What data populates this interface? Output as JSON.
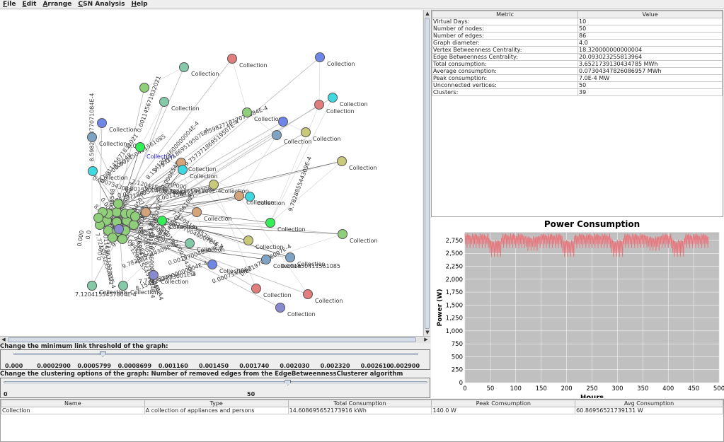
{
  "menu": [
    {
      "mnemonic": "F",
      "rest": "ile"
    },
    {
      "mnemonic": "E",
      "rest": "dit"
    },
    {
      "mnemonic": "A",
      "rest": "rrange"
    },
    {
      "mnemonic": "C",
      "rest": "SN Analysis"
    },
    {
      "mnemonic": "H",
      "rest": "elp"
    }
  ],
  "graph": {
    "node_label": "Collection",
    "selected_label": "Collection",
    "node_colors": {
      "green": "#8fcf7a",
      "teal": "#86c9a8",
      "red": "#e07d7d",
      "blue": "#6f86e6",
      "steel": "#7fa3c4",
      "cyan": "#3fd8e0",
      "olive": "#c9c97a",
      "tan": "#d4a57a",
      "lime": "#33ee55",
      "slate": "#8a8ad0"
    },
    "edge_labels": [
      "8.598271877071084E-4",
      "0.001145671832021",
      "9.757371869519507E-4",
      "9.782885544309E-4",
      "7.1204155457804E-4",
      "7.721593233001E-4",
      "8.15412024600000004E-4",
      "0.001450411561085",
      "0.001970046007E-4",
      "0.0007543067",
      "0.001",
      "0.0006548",
      "0.0",
      "0.000"
    ]
  },
  "metrics": {
    "headers": [
      "Metric",
      "Value"
    ],
    "rows": [
      [
        "Virtual Days:",
        "10"
      ],
      [
        "Number of nodes:",
        "50"
      ],
      [
        "Number of edges:",
        "86"
      ],
      [
        "Graph diameter:",
        "4.0"
      ],
      [
        "Vertex Betweenness Centrality:",
        "18.320000000000004"
      ],
      [
        "Edge Betweenness Centrality:",
        "20.093023255813964"
      ],
      [
        "Total consumption:",
        "3.6521739130434785 MWh"
      ],
      [
        "Average consumption:",
        "0.07304347826086957 MWh"
      ],
      [
        "Peak consumption:",
        "7.0E-4 MW"
      ],
      [
        "Unconnected vertices:",
        "50"
      ],
      [
        "Clusters:",
        "39"
      ]
    ]
  },
  "chart_data": {
    "type": "line",
    "title": "Power Consumption",
    "xlabel": "Hours",
    "ylabel": "Power (W)",
    "xlim": [
      0,
      500
    ],
    "ylim": [
      0,
      2900
    ],
    "xticks": [
      0,
      50,
      100,
      150,
      200,
      250,
      300,
      350,
      400,
      450,
      500
    ],
    "yticks": [
      0,
      250,
      500,
      750,
      1000,
      1250,
      1500,
      1750,
      2000,
      2250,
      2500,
      2750
    ],
    "ytick_labels": [
      "0",
      "250",
      "500",
      "750",
      "1,000",
      "1,250",
      "1,500",
      "1,750",
      "2,000",
      "2,250",
      "2,500",
      "2,750"
    ],
    "series": [
      {
        "color": "#e8747a",
        "segments": [
          {
            "x_start": 0,
            "x_end": 48,
            "low": 2550,
            "high": 2880
          },
          {
            "x_start": 48,
            "x_end": 72,
            "low": 2380,
            "high": 2760
          },
          {
            "x_start": 72,
            "x_end": 120,
            "low": 2550,
            "high": 2880
          },
          {
            "x_start": 120,
            "x_end": 144,
            "low": 2500,
            "high": 2830
          },
          {
            "x_start": 144,
            "x_end": 192,
            "low": 2550,
            "high": 2880
          },
          {
            "x_start": 192,
            "x_end": 216,
            "low": 2380,
            "high": 2760
          },
          {
            "x_start": 216,
            "x_end": 288,
            "low": 2550,
            "high": 2880
          },
          {
            "x_start": 288,
            "x_end": 312,
            "low": 2380,
            "high": 2760
          },
          {
            "x_start": 312,
            "x_end": 360,
            "low": 2550,
            "high": 2880
          },
          {
            "x_start": 360,
            "x_end": 384,
            "low": 2500,
            "high": 2830
          },
          {
            "x_start": 384,
            "x_end": 408,
            "low": 2550,
            "high": 2880
          },
          {
            "x_start": 408,
            "x_end": 432,
            "low": 2380,
            "high": 2760
          },
          {
            "x_start": 432,
            "x_end": 480,
            "low": 2550,
            "high": 2880
          }
        ]
      }
    ],
    "grid": true,
    "background": "#c0c0c0"
  },
  "threshold": {
    "title": "Change the minimum link threshold of the graph:",
    "ticks": [
      "0.000",
      "0.0002900",
      "0.0005799",
      "0.0008699",
      "0.001160",
      "0.001450",
      "0.001740",
      "0.002030",
      "0.002320",
      "0.002610",
      "0.002900"
    ],
    "value_fraction": 0.22
  },
  "clustering": {
    "title": "Change the clustering options of the graph: Number of removed edges from the EdgeBetweennessClusterer algorithm",
    "ticks": [
      "0",
      "50"
    ],
    "value_fraction": 0.67
  },
  "bottom_table": {
    "headers": [
      "Name",
      "Type",
      "Total Consumption",
      "Peak Comsumption",
      "Avg Consumption"
    ],
    "rows": [
      [
        "Collection",
        "A collection of appliances and persons",
        "14.608695652173916 kWh",
        "140.0 W",
        "60.86956521739131 W"
      ]
    ]
  }
}
